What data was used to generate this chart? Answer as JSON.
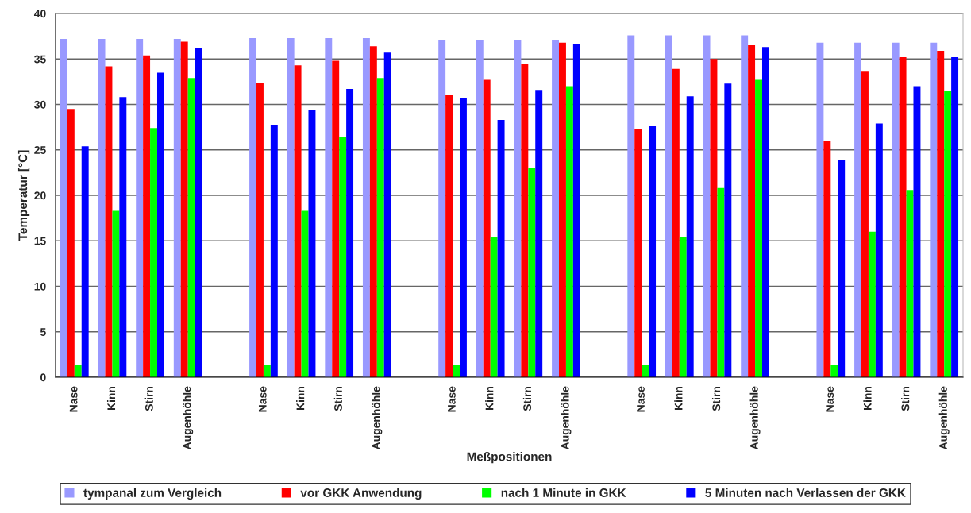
{
  "chart_data": {
    "type": "bar",
    "xlabel": "Meßpositionen",
    "ylabel": "Temperatur [°C]",
    "categories": [
      "Nase",
      "Kinn",
      "Stirn",
      "Augenhöhle",
      null,
      "Nase",
      "Kinn",
      "Stirn",
      "Augenhöhle",
      null,
      "Nase",
      "Kinn",
      "Stirn",
      "Augenhöhle",
      null,
      "Nase",
      "Kinn",
      "Stirn",
      "Augenhöhle",
      null,
      "Nase",
      "Kinn",
      "Stirn",
      "Augenhöhle"
    ],
    "series": [
      {
        "name": "tympanal zum Vergleich",
        "color": "#9999ff",
        "values": [
          37.2,
          37.2,
          37.2,
          37.2,
          null,
          37.3,
          37.3,
          37.3,
          37.3,
          null,
          37.1,
          37.1,
          37.1,
          37.1,
          null,
          37.6,
          37.6,
          37.6,
          37.6,
          null,
          36.8,
          36.8,
          36.8,
          36.8
        ]
      },
      {
        "name": "vor GKK Anwendung",
        "color": "#ff0000",
        "values": [
          29.5,
          34.2,
          35.4,
          36.9,
          null,
          32.4,
          34.3,
          34.8,
          36.4,
          null,
          31.0,
          32.7,
          34.5,
          36.8,
          null,
          27.3,
          33.9,
          35.0,
          36.5,
          null,
          26.0,
          33.6,
          35.2,
          35.9
        ]
      },
      {
        "name": "nach 1 Minute in GKK",
        "color": "#00ff00",
        "values": [
          1.4,
          18.3,
          27.4,
          32.9,
          null,
          1.4,
          18.3,
          26.4,
          32.9,
          null,
          1.4,
          15.4,
          23.0,
          32.0,
          null,
          1.4,
          15.4,
          20.8,
          32.7,
          null,
          1.4,
          16.0,
          20.6,
          31.5
        ]
      },
      {
        "name": "5 Minuten nach Verlassen der GKK",
        "color": "#0000ff",
        "values": [
          25.4,
          30.8,
          33.5,
          36.2,
          null,
          27.7,
          29.4,
          31.7,
          35.7,
          null,
          30.7,
          28.3,
          31.6,
          36.6,
          null,
          27.6,
          30.9,
          32.3,
          36.3,
          null,
          23.9,
          27.9,
          32.0,
          35.2
        ]
      }
    ],
    "ylim": [
      0,
      40
    ],
    "yticks": [
      0,
      5,
      10,
      15,
      20,
      25,
      30,
      35,
      40
    ],
    "grid": "y",
    "legend": "bottom"
  }
}
